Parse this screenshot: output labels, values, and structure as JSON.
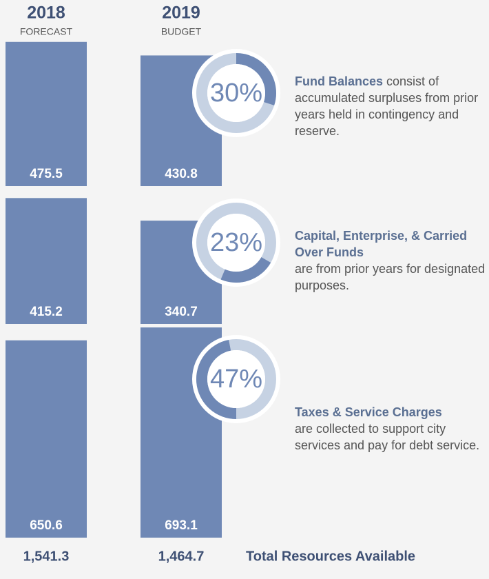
{
  "columns": [
    {
      "year": "2018",
      "label": "FORECAST",
      "total": {
        "value": 1541.3,
        "label": "1,541.3"
      }
    },
    {
      "year": "2019",
      "label": "BUDGET",
      "total": {
        "value": 1464.7,
        "label": "1,464.7"
      }
    }
  ],
  "rows": [
    {
      "values": [
        475.5,
        430.8
      ],
      "percent": {
        "value": 30,
        "label": "30%"
      },
      "description_bold": "Fund Balances",
      "description": " consist of accumulated surpluses from prior years held in contingency and reserve."
    },
    {
      "values": [
        415.2,
        340.7
      ],
      "percent": {
        "value": 23,
        "label": "23%"
      },
      "description_bold": "Capital, Enterprise, & Carried Over Funds",
      "description": "are from prior years for designated purposes."
    },
    {
      "values": [
        650.6,
        693.1
      ],
      "percent": {
        "value": 47,
        "label": "47%"
      },
      "description_bold": "Taxes & Service Charges",
      "description": "are collected to support city services and pay for debt service."
    }
  ],
  "total_label": "Total Resources Available"
}
